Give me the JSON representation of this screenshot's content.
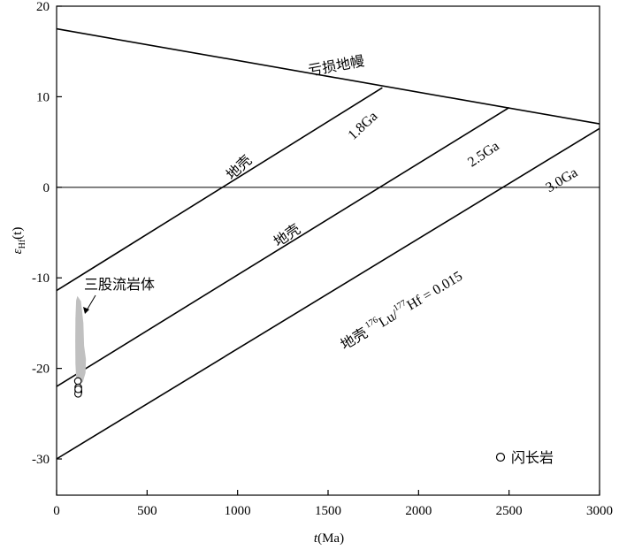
{
  "chart_data": {
    "type": "line",
    "xlabel": {
      "var": "t",
      "unit": "(Ma)"
    },
    "ylabel": {
      "var": "ε",
      "sub": "Hf",
      "arg": "(t)"
    },
    "xlim": [
      0,
      3000
    ],
    "ylim": [
      -34,
      20
    ],
    "xticks": [
      0,
      500,
      1000,
      1500,
      2000,
      2500,
      3000
    ],
    "yticks": [
      -30,
      -20,
      -10,
      0,
      10,
      20
    ],
    "zero_line": true,
    "series": [
      {
        "name": "亏损地幔",
        "x": [
          0,
          3000
        ],
        "y": [
          17.5,
          7
        ]
      },
      {
        "name": "1.8Ga",
        "x": [
          0,
          1800
        ],
        "y": [
          -11.4,
          11
        ]
      },
      {
        "name": "2.5Ga",
        "x": [
          0,
          2500
        ],
        "y": [
          -22,
          8.8
        ]
      },
      {
        "name": "3.0Ga",
        "x": [
          0,
          3000
        ],
        "y": [
          -30,
          6.5
        ]
      }
    ],
    "labels": {
      "mantle": "亏损地幔",
      "age18": "1.8Ga",
      "age25": "2.5Ga",
      "age30": "3.0Ga",
      "crust1": "地壳",
      "crust2": "地壳",
      "crust3": "地壳",
      "ratio": {
        "sup1": "176",
        "el1": "Lu/",
        "sup2": "177",
        "el2": "Hf = 0.015"
      }
    },
    "field": {
      "name": "三股流岩体",
      "color": "#c0c0c0",
      "outline": [
        [
          115,
          -12.0
        ],
        [
          135,
          -12.6
        ],
        [
          148,
          -15.0
        ],
        [
          152,
          -17.5
        ],
        [
          162,
          -19.0
        ],
        [
          160,
          -20.5
        ],
        [
          145,
          -21.5
        ],
        [
          120,
          -21.8
        ],
        [
          108,
          -21.0
        ],
        [
          104,
          -19.5
        ],
        [
          103,
          -17.0
        ],
        [
          104,
          -14.5
        ],
        [
          108,
          -12.5
        ]
      ]
    },
    "points": {
      "name": "闪长岩",
      "marker": "open-circle",
      "x": [
        118,
        120,
        120,
        121,
        119,
        120
      ],
      "y": [
        -21.4,
        -22.1,
        -22.4,
        -22.6,
        -22.8,
        -22.3
      ]
    }
  }
}
